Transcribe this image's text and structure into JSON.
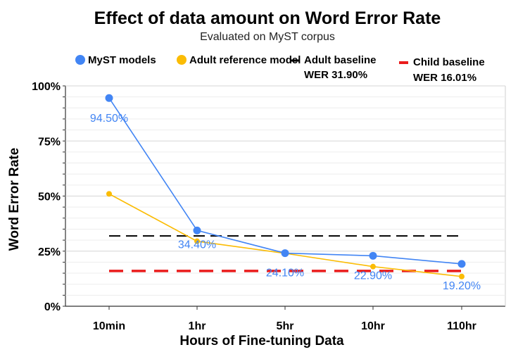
{
  "chart_data": {
    "type": "line",
    "title": "Effect of data amount on Word Error Rate",
    "subtitle": "Evaluated on MyST corpus",
    "xlabel": "Hours of Fine-tuning Data",
    "ylabel": "Word Error Rate",
    "categories": [
      "10min",
      "1hr",
      "5hr",
      "10hr",
      "110hr"
    ],
    "ylim": [
      0,
      100
    ],
    "yticks": [
      "0%",
      "25%",
      "50%",
      "75%",
      "100%"
    ],
    "grid": true,
    "legend_position": "top",
    "series": [
      {
        "name": "MyST models",
        "color": "#4285f4",
        "values": [
          94.5,
          34.4,
          24.1,
          22.9,
          19.2
        ],
        "labels": [
          "94.50%",
          "34.40%",
          "24.10%",
          "22.90%",
          "19.20%"
        ]
      },
      {
        "name": "Adult reference model",
        "color": "#fbbc04",
        "values": [
          51.0,
          29.5,
          24.0,
          18.0,
          13.5
        ]
      }
    ],
    "baselines": [
      {
        "name": "Adult baseline",
        "value_label": "WER 31.90%",
        "value": 31.9,
        "color": "#000000",
        "style": "dashed"
      },
      {
        "name": "Child baseline",
        "value_label": "WER 16.01%",
        "value": 16.01,
        "color": "#ea1c1c",
        "style": "dashed"
      }
    ]
  }
}
